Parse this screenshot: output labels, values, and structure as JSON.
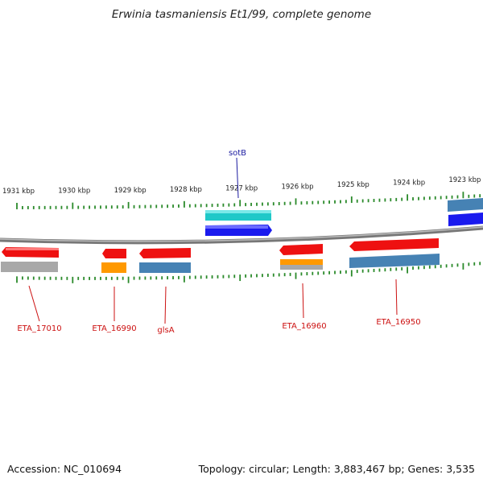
{
  "title": "Erwinia tasmaniensis Et1/99, complete genome",
  "footer": {
    "accession": "Accession: NC_010694",
    "topology": "Topology: circular; Length: 3,883,467 bp; Genes: 3,535"
  },
  "scale_unit": "kbp",
  "ticks": [
    1931,
    1930,
    1929,
    1928,
    1927,
    1926,
    1925,
    1924,
    1923
  ],
  "colors": {
    "red": "#ee1111",
    "orange": "#ff9900",
    "steelblue": "#4682b4",
    "cyan": "#20c8c8",
    "blue": "#1a1aee",
    "gray": "#a8a8a8",
    "tick": "#2a8a2a",
    "axis": "#888888",
    "label_top": "#1a1aa0",
    "label_bottom": "#cc1111"
  },
  "labels_top": [
    {
      "text": "sotB"
    }
  ],
  "labels_bottom": [
    {
      "text": "ETA_17010"
    },
    {
      "text": "ETA_16990"
    },
    {
      "text": "glsA"
    },
    {
      "text": "ETA_16960"
    },
    {
      "text": "ETA_16950"
    }
  ]
}
